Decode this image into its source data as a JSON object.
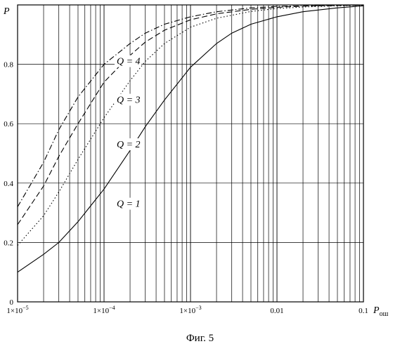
{
  "chart_data": {
    "type": "line",
    "xscale": "log",
    "xlim": [
      1e-05,
      0.1
    ],
    "ylim": [
      0,
      1
    ],
    "grid": true,
    "xtick_labels": [
      {
        "value": 1e-05,
        "base": "1×10",
        "exp": "−5"
      },
      {
        "value": 0.0001,
        "base": "1×10",
        "exp": "−4"
      },
      {
        "value": 0.001,
        "base": "1×10",
        "exp": "−3"
      },
      {
        "value": 0.01,
        "text": "0.01"
      },
      {
        "value": 0.1,
        "text": "0.1"
      }
    ],
    "ytick_labels": [
      {
        "value": 0,
        "text": "0"
      },
      {
        "value": 0.2,
        "text": "0.2"
      },
      {
        "value": 0.4,
        "text": "0.4"
      },
      {
        "value": 0.6,
        "text": "0.6"
      },
      {
        "value": 0.8,
        "text": "0.8"
      }
    ],
    "ylabel": "P",
    "xlabel": {
      "main": "P",
      "sub": "ош"
    },
    "series": [
      {
        "name": "Q = 1",
        "dash": "solid",
        "label_at": {
          "x": 0.00014,
          "y": 0.32
        },
        "x": [
          1e-05,
          2e-05,
          3e-05,
          5e-05,
          0.0001,
          0.0002,
          0.0003,
          0.0005,
          0.001,
          0.002,
          0.003,
          0.005,
          0.01,
          0.02,
          0.05,
          0.1
        ],
        "y": [
          0.1,
          0.16,
          0.2,
          0.27,
          0.38,
          0.51,
          0.59,
          0.68,
          0.79,
          0.87,
          0.905,
          0.935,
          0.96,
          0.977,
          0.99,
          0.997
        ]
      },
      {
        "name": "Q = 2",
        "dash": "dotted",
        "label_at": {
          "x": 0.00014,
          "y": 0.52
        },
        "x": [
          1e-05,
          2e-05,
          3e-05,
          5e-05,
          0.0001,
          0.0002,
          0.0003,
          0.0005,
          0.001,
          0.002,
          0.005,
          0.01,
          0.02,
          0.05,
          0.1
        ],
        "y": [
          0.19,
          0.29,
          0.37,
          0.48,
          0.62,
          0.745,
          0.81,
          0.87,
          0.925,
          0.955,
          0.978,
          0.988,
          0.993,
          0.997,
          0.999
        ]
      },
      {
        "name": "Q = 3",
        "dash": "dashed",
        "label_at": {
          "x": 0.00014,
          "y": 0.67
        },
        "x": [
          1e-05,
          2e-05,
          3e-05,
          5e-05,
          0.0001,
          0.0002,
          0.0003,
          0.0005,
          0.001,
          0.002,
          0.005,
          0.01,
          0.02,
          0.05,
          0.1
        ],
        "y": [
          0.26,
          0.39,
          0.49,
          0.6,
          0.74,
          0.83,
          0.875,
          0.915,
          0.95,
          0.97,
          0.985,
          0.992,
          0.996,
          0.998,
          0.999
        ]
      },
      {
        "name": "Q = 4",
        "dash": "dash-dot",
        "label_at": {
          "x": 0.00014,
          "y": 0.8
        },
        "x": [
          1e-05,
          2e-05,
          3e-05,
          5e-05,
          0.0001,
          0.0002,
          0.0003,
          0.0005,
          0.001,
          0.002,
          0.005,
          0.01,
          0.02,
          0.05,
          0.1
        ],
        "y": [
          0.32,
          0.47,
          0.58,
          0.69,
          0.8,
          0.87,
          0.905,
          0.935,
          0.96,
          0.977,
          0.99,
          0.995,
          0.997,
          0.999,
          1.0
        ]
      }
    ]
  },
  "caption": "Фиг. 5"
}
